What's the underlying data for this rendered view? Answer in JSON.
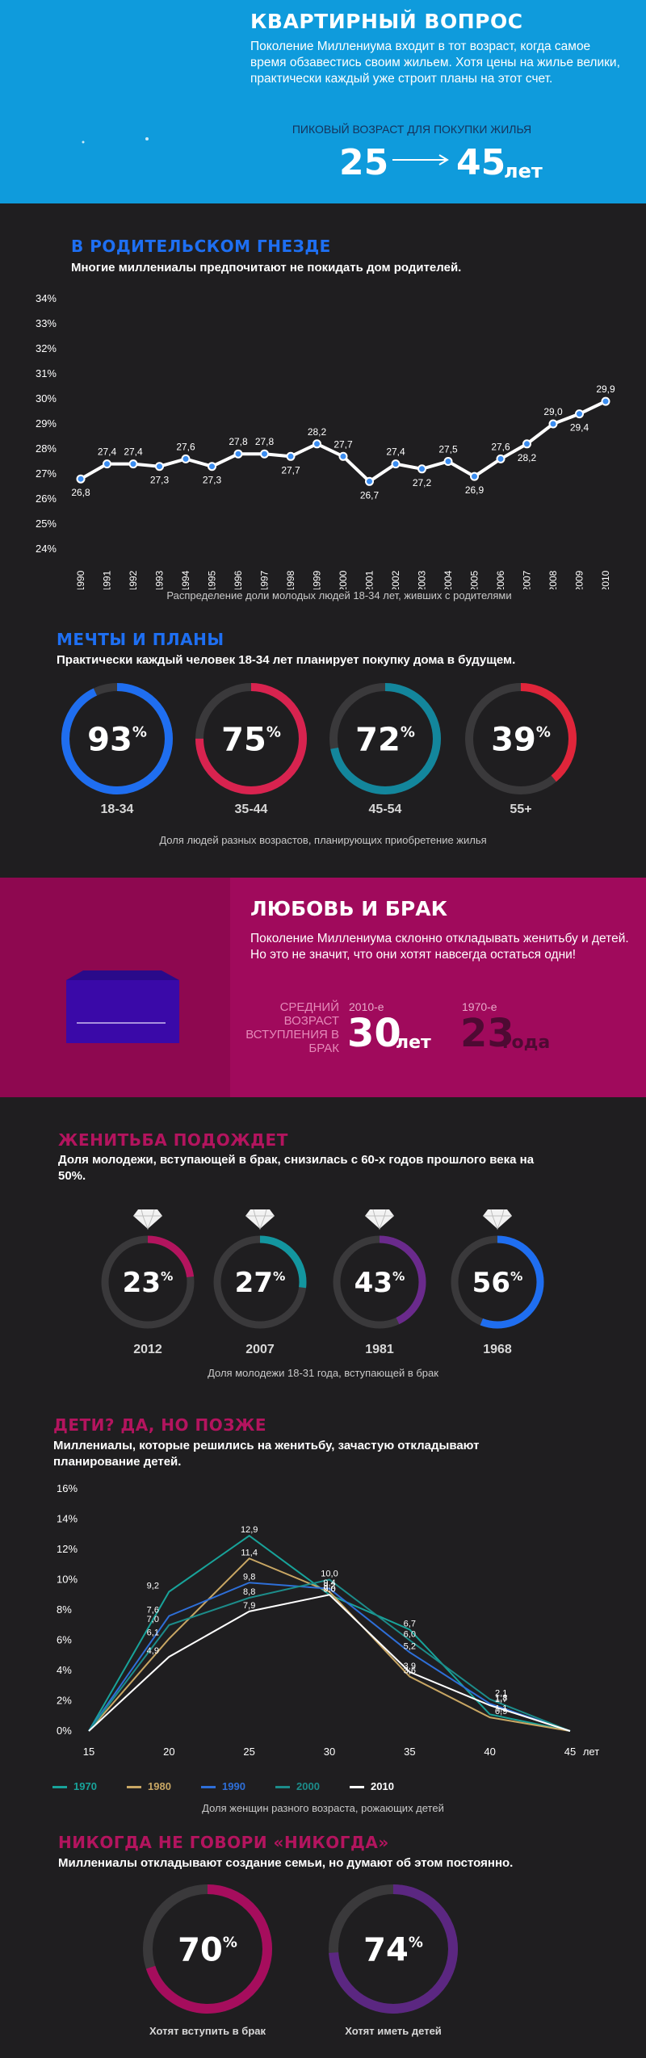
{
  "hero": {
    "title": "КВАРТИРНЫЙ ВОПРОС",
    "text": "Поколение Миллениума входит в тот возраст, когда самое время обзавестись своим жильем. Хотя цены на жилье велики, практически каждый уже строит планы на этот счет.",
    "peak_label": "ПИКОВЫЙ ВОЗРАСТ ДЛЯ ПОКУПКИ ЖИЛЬЯ",
    "age_from": "25",
    "age_to": "45",
    "age_unit": "лет"
  },
  "nest": {
    "title": "В РОДИТЕЛЬСКОМ ГНЕЗДЕ",
    "subtitle": "Многие миллениалы предпочитают не покидать дом родителей.",
    "caption": "Распределение доли молодых людей 18-34 лет, живших с родителями"
  },
  "dreams": {
    "title": "МЕЧТЫ И ПЛАНЫ",
    "subtitle": "Практически каждый человек 18-34 лет планирует покупку дома в будущем.",
    "caption": "Доля людей разных возрастов, планирующих приобретение жилья",
    "rings": [
      {
        "pct": "93%",
        "value": 93,
        "label": "18-34",
        "color": "#1f6ef0"
      },
      {
        "pct": "75%",
        "value": 75,
        "label": "35-44",
        "color": "#d8234f"
      },
      {
        "pct": "72%",
        "value": 72,
        "label": "45-54",
        "color": "#13869c"
      },
      {
        "pct": "39%",
        "value": 39,
        "label": "55+",
        "color": "#e0253a"
      }
    ]
  },
  "love": {
    "title": "ЛЮБОВЬ И БРАК",
    "text": "Поколение Миллениума склонно откладывать женитьбу и детей. Но это не значит, что они хотят навсегда остаться одни!",
    "avg_label": "СРЕДНИЙ ВОЗРАСТ ВСТУПЛЕНИЯ В БРАК",
    "era1": "2010-е",
    "age1": "30",
    "unit1": "лет",
    "era2": "1970-е",
    "age2": "23",
    "unit2": "года"
  },
  "marriage": {
    "title": "ЖЕНИТЬБА ПОДОЖДЕТ",
    "subtitle": "Доля молодежи, вступающей в брак, снизилась с 60-х годов прошлого века на 50%.",
    "caption": "Доля молодежи 18-31 года, вступающей в брак",
    "rings": [
      {
        "pct": "23%",
        "value": 23,
        "label": "2012",
        "color": "#b3145e"
      },
      {
        "pct": "27%",
        "value": 27,
        "label": "2007",
        "color": "#13969f"
      },
      {
        "pct": "43%",
        "value": 43,
        "label": "1981",
        "color": "#6a2a8c"
      },
      {
        "pct": "56%",
        "value": 56,
        "label": "1968",
        "color": "#1f6ef0"
      }
    ]
  },
  "kids": {
    "title": "ДЕТИ? ДА, НО ПОЗЖЕ",
    "subtitle": "Миллениалы, которые решились на женитьбу, зачастую откладывают планирование детей.",
    "caption": "Доля женщин разного возраста, рожающих детей",
    "x_unit": "лет"
  },
  "never": {
    "title": "НИКОГДА НЕ ГОВОРИ «НИКОГДА»",
    "subtitle": "Миллениалы откладывают создание семьи, но думают об этом постоянно.",
    "rings": [
      {
        "pct": "70%",
        "value": 70,
        "label": "Хотят вступить в брак",
        "color": "#a60d5d"
      },
      {
        "pct": "74%",
        "value": 74,
        "label": "Хотят иметь детей",
        "color": "#5b2781"
      }
    ]
  },
  "chart_data": [
    {
      "type": "line",
      "x": [
        "1990",
        "1991",
        "1992",
        "1993",
        "1994",
        "1995",
        "1996",
        "1997",
        "1998",
        "1999",
        "2000",
        "2001",
        "2002",
        "2003",
        "2004",
        "2005",
        "2006",
        "2007",
        "2008",
        "2009",
        "2010"
      ],
      "values": [
        26.8,
        27.4,
        27.4,
        27.3,
        27.6,
        27.3,
        27.8,
        27.8,
        27.7,
        28.2,
        27.7,
        26.7,
        27.4,
        27.2,
        27.5,
        26.9,
        27.6,
        28.2,
        29.0,
        29.4,
        29.9
      ],
      "labels": [
        "26,8",
        "27,4",
        "27,4",
        "27,3",
        "27,6",
        "27,3",
        "27,8",
        "27,8",
        "27,7",
        "28,2",
        "27,7",
        "26,7",
        "27,4",
        "27,2",
        "27,5",
        "26,9",
        "27,6",
        "28,2",
        "29,0",
        "29,4",
        "29,9"
      ],
      "y_ticks": [
        "24%",
        "25%",
        "26%",
        "27%",
        "28%",
        "29%",
        "30%",
        "31%",
        "32%",
        "33%",
        "34%"
      ],
      "ylim": [
        24,
        34
      ],
      "grid": false
    },
    {
      "type": "line",
      "x": [
        15,
        20,
        25,
        30,
        35,
        40,
        45
      ],
      "x_ticks": [
        "15",
        "20",
        "25",
        "30",
        "35",
        "40",
        "45"
      ],
      "y_ticks": [
        "0%",
        "2%",
        "4%",
        "6%",
        "8%",
        "10%",
        "12%",
        "14%",
        "16%"
      ],
      "ylim": [
        0,
        16
      ],
      "legend": "bottom",
      "series": [
        {
          "name": "1970",
          "color": "#18a39a",
          "values": [
            0,
            9.2,
            12.9,
            9.0,
            6.7,
            1.1,
            0
          ]
        },
        {
          "name": "1980",
          "color": "#c9a764",
          "values": [
            0,
            6.1,
            11.4,
            9.2,
            3.6,
            0.9,
            0
          ]
        },
        {
          "name": "1990",
          "color": "#2e6fd8",
          "values": [
            0,
            7.6,
            9.8,
            9.4,
            5.2,
            1.8,
            0
          ]
        },
        {
          "name": "2000",
          "color": "#1c8c8a",
          "values": [
            0,
            7.0,
            8.8,
            10.0,
            6.0,
            2.1,
            0
          ]
        },
        {
          "name": "2010",
          "color": "#ffffff",
          "values": [
            0,
            4.9,
            7.9,
            9.0,
            3.9,
            1.7,
            0
          ]
        }
      ],
      "data_labels": [
        {
          "x": 20,
          "y": 9.2,
          "text": "9,2"
        },
        {
          "x": 20,
          "y": 7.6,
          "text": "7,6"
        },
        {
          "x": 20,
          "y": 7.0,
          "text": "7,0"
        },
        {
          "x": 20,
          "y": 6.1,
          "text": "6,1"
        },
        {
          "x": 20,
          "y": 4.9,
          "text": "4,9"
        },
        {
          "x": 25,
          "y": 12.9,
          "text": "12,9"
        },
        {
          "x": 25,
          "y": 11.4,
          "text": "11,4"
        },
        {
          "x": 25,
          "y": 9.8,
          "text": "9,8"
        },
        {
          "x": 25,
          "y": 8.8,
          "text": "8,8"
        },
        {
          "x": 25,
          "y": 7.9,
          "text": "7,9"
        },
        {
          "x": 30,
          "y": 10.0,
          "text": "10,0"
        },
        {
          "x": 30,
          "y": 9.4,
          "text": "9,4"
        },
        {
          "x": 30,
          "y": 9.2,
          "text": "9,2"
        },
        {
          "x": 30,
          "y": 9.0,
          "text": "9,0"
        },
        {
          "x": 30,
          "y": 9.0,
          "text": "9,0"
        },
        {
          "x": 35,
          "y": 6.7,
          "text": "6,7"
        },
        {
          "x": 35,
          "y": 6.0,
          "text": "6,0"
        },
        {
          "x": 35,
          "y": 5.2,
          "text": "5,2"
        },
        {
          "x": 35,
          "y": 3.9,
          "text": "3,9"
        },
        {
          "x": 35,
          "y": 3.6,
          "text": "3,6"
        },
        {
          "x": 40,
          "y": 2.1,
          "text": "2,1"
        },
        {
          "x": 40,
          "y": 1.8,
          "text": "1,8"
        },
        {
          "x": 40,
          "y": 1.7,
          "text": "1,7"
        },
        {
          "x": 40,
          "y": 1.1,
          "text": "1,1"
        },
        {
          "x": 40,
          "y": 0.9,
          "text": "0,9"
        }
      ]
    }
  ]
}
